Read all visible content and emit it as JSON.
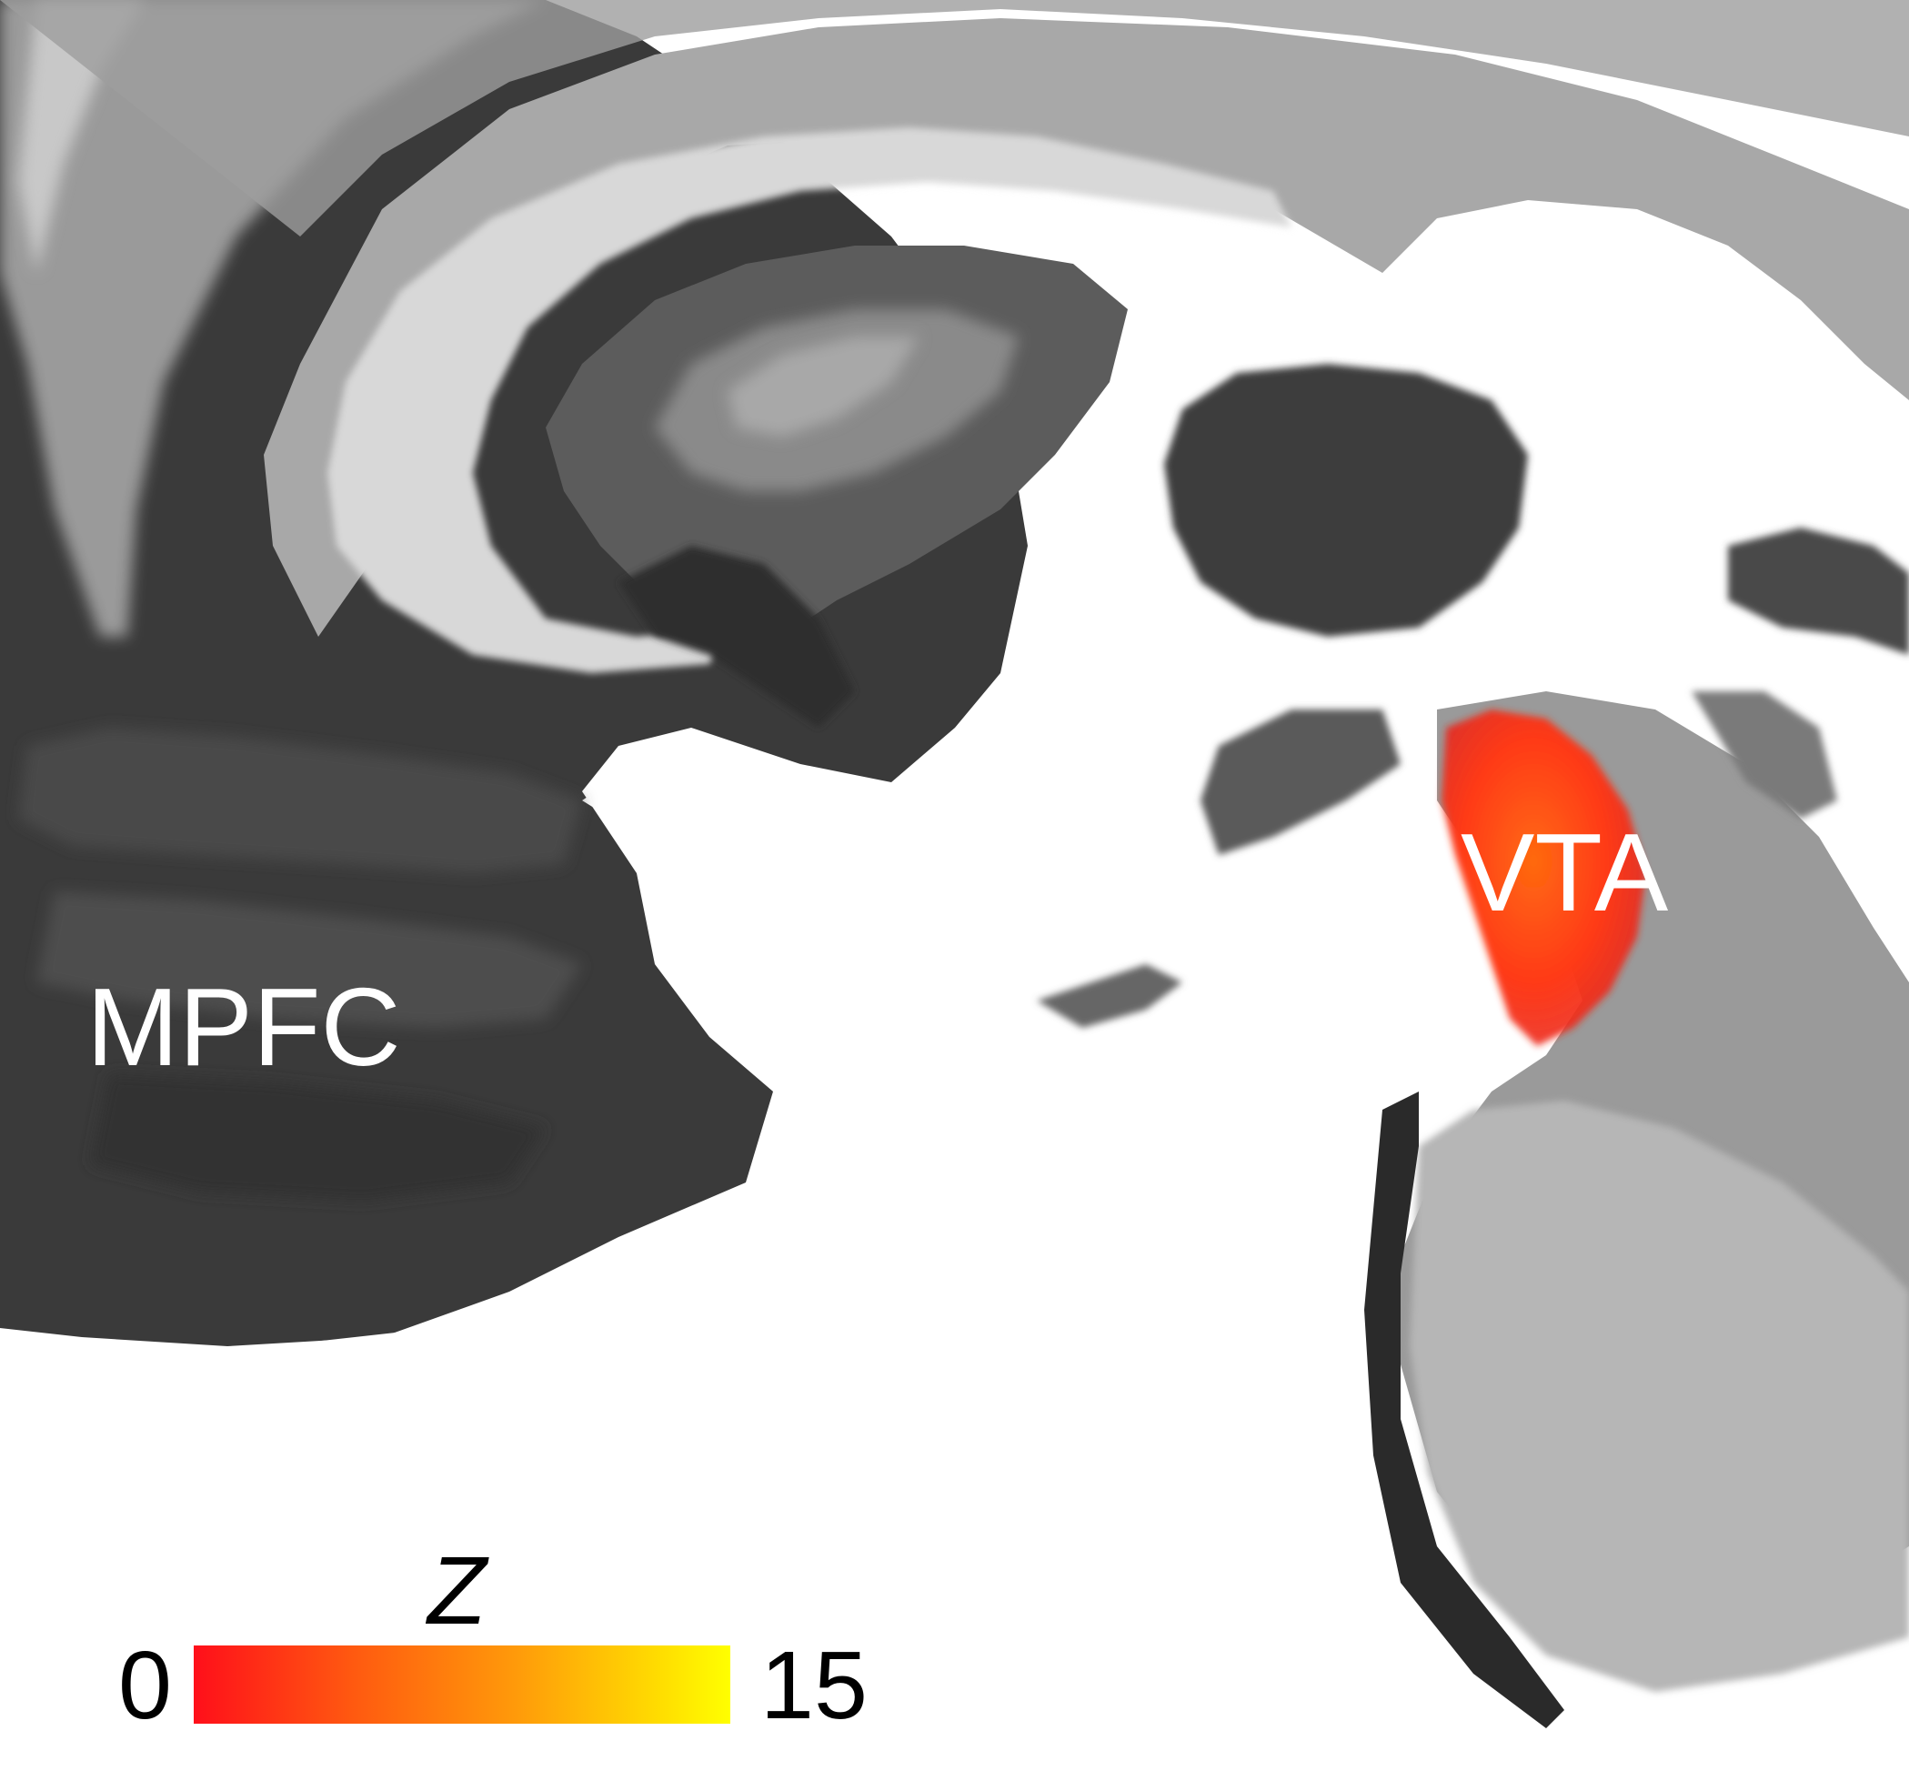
{
  "labels": {
    "region_1": "MPFC",
    "region_2": "VTA"
  },
  "colorbar": {
    "title": "Z",
    "min": "0",
    "max": "15",
    "colors": [
      "#ff0f1a",
      "#ff9a0a",
      "#ffff00"
    ]
  },
  "colors": {
    "background": "#ffffff",
    "activation": "#ff4a14"
  }
}
